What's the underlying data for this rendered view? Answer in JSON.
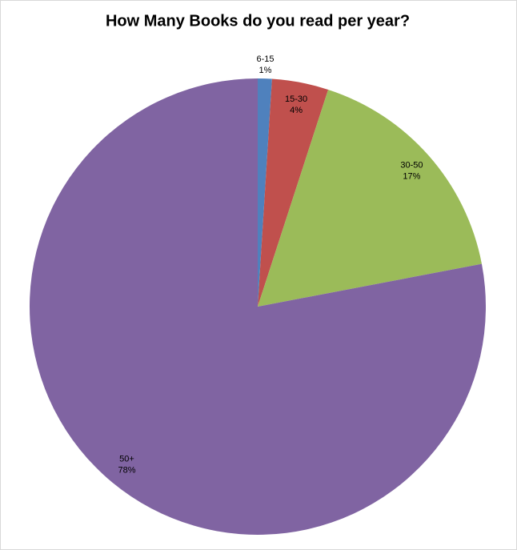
{
  "chart_data": {
    "type": "pie",
    "title": "How Many Books do you read per year?",
    "categories": [
      "6-15",
      "15-30",
      "30-50",
      "50+"
    ],
    "values": [
      1,
      4,
      17,
      78
    ],
    "value_labels": [
      "1%",
      "4%",
      "17%",
      "78%"
    ],
    "colors": [
      "#4f81bd",
      "#c0504d",
      "#9bbb59",
      "#8064a2"
    ]
  }
}
